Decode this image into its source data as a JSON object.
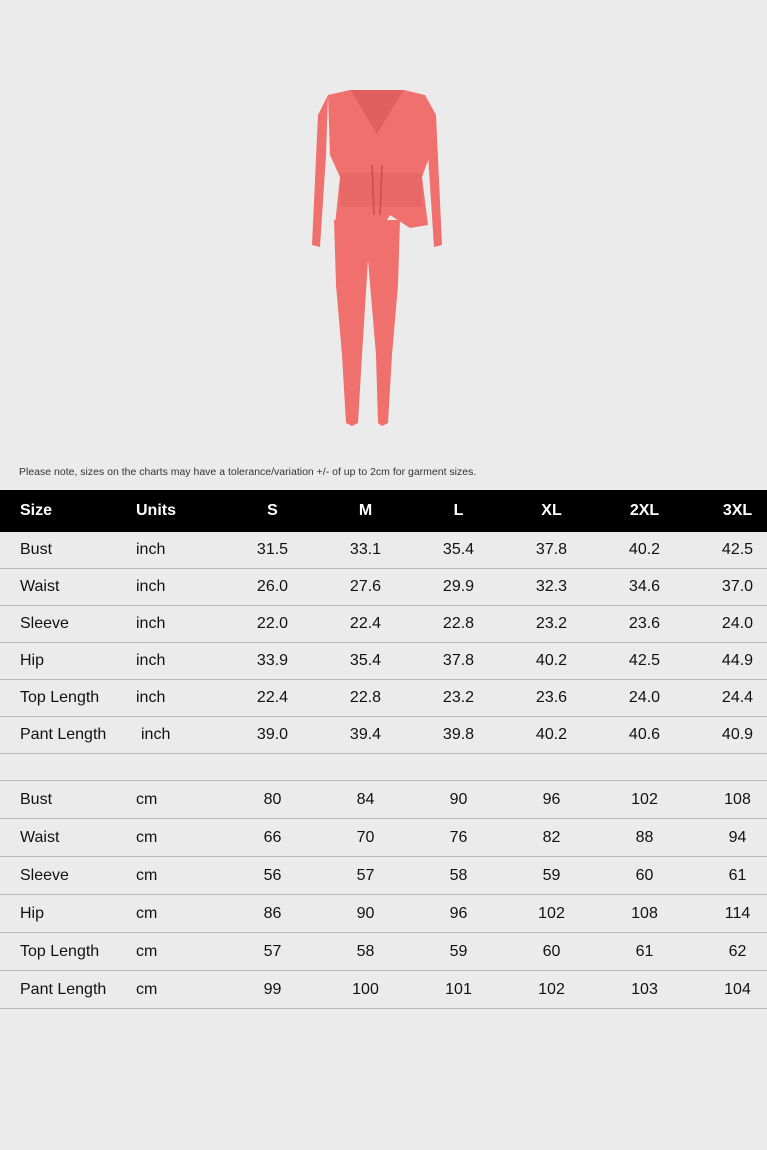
{
  "product": {
    "color": "#f0706e"
  },
  "note": "Please note, sizes on the charts may have a tolerance/variation +/- of up to 2cm for garment sizes.",
  "table": {
    "headers": [
      "Size",
      "Units",
      "S",
      "M",
      "L",
      "XL",
      "2XL",
      "3XL"
    ],
    "inch_rows": [
      {
        "name": "Bust",
        "unit": "inch",
        "values": [
          "31.5",
          "33.1",
          "35.4",
          "37.8",
          "40.2",
          "42.5"
        ]
      },
      {
        "name": "Waist",
        "unit": "inch",
        "values": [
          "26.0",
          "27.6",
          "29.9",
          "32.3",
          "34.6",
          "37.0"
        ]
      },
      {
        "name": "Sleeve",
        "unit": "inch",
        "values": [
          "22.0",
          "22.4",
          "22.8",
          "23.2",
          "23.6",
          "24.0"
        ]
      },
      {
        "name": "Hip",
        "unit": "inch",
        "values": [
          "33.9",
          "35.4",
          "37.8",
          "40.2",
          "42.5",
          "44.9"
        ]
      },
      {
        "name": "Top Length",
        "unit": "inch",
        "values": [
          "22.4",
          "22.8",
          "23.2",
          "23.6",
          "24.0",
          "24.4"
        ]
      },
      {
        "name": "Pant Length",
        "unit": "inch",
        "values": [
          "39.0",
          "39.4",
          "39.8",
          "40.2",
          "40.6",
          "40.9"
        ]
      }
    ],
    "cm_rows": [
      {
        "name": "Bust",
        "unit": "cm",
        "values": [
          "80",
          "84",
          "90",
          "96",
          "102",
          "108"
        ]
      },
      {
        "name": "Waist",
        "unit": "cm",
        "values": [
          "66",
          "70",
          "76",
          "82",
          "88",
          "94"
        ]
      },
      {
        "name": "Sleeve",
        "unit": "cm",
        "values": [
          "56",
          "57",
          "58",
          "59",
          "60",
          "61"
        ]
      },
      {
        "name": "Hip",
        "unit": "cm",
        "values": [
          "86",
          "90",
          "96",
          "102",
          "108",
          "114"
        ]
      },
      {
        "name": "Top Length",
        "unit": "cm",
        "values": [
          "57",
          "58",
          "59",
          "60",
          "61",
          "62"
        ]
      },
      {
        "name": "Pant Length",
        "unit": "cm",
        "values": [
          "99",
          "100",
          "101",
          "102",
          "103",
          "104"
        ]
      }
    ]
  }
}
